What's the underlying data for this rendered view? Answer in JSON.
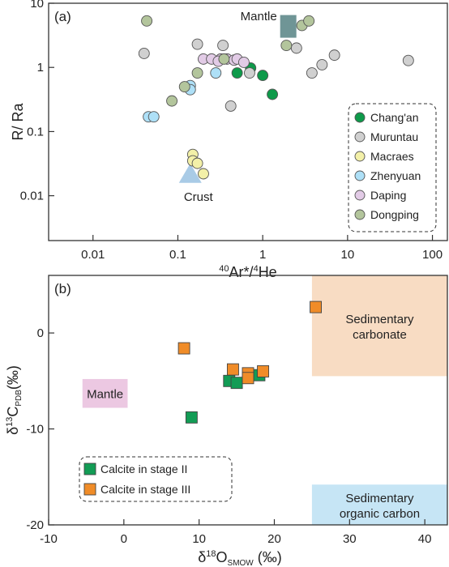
{
  "chart_data": [
    {
      "panel_label": "(a)",
      "type": "scatter",
      "x_scale": "log",
      "y_scale": "log",
      "xlim": [
        0.003,
        150
      ],
      "ylim": [
        0.002,
        10
      ],
      "x_ticks": [
        {
          "value": 0.01,
          "label": "0.01"
        },
        {
          "value": 0.1,
          "label": "0.1"
        },
        {
          "value": 1,
          "label": "1"
        },
        {
          "value": 10,
          "label": "10"
        },
        {
          "value": 100,
          "label": "100"
        }
      ],
      "y_ticks": [
        {
          "value": 0.01,
          "label": "0.01"
        },
        {
          "value": 0.1,
          "label": "0.1"
        },
        {
          "value": 1,
          "label": "1"
        },
        {
          "value": 10,
          "label": "10"
        }
      ],
      "xlabel_sup1": "40",
      "xlabel_main1": "Ar*/",
      "xlabel_sup2": "4",
      "xlabel_main2": "He",
      "ylabel": "R/ Ra",
      "reference_labels": {
        "mantle": "Mantle",
        "crust": "Crust"
      },
      "reference_points": [
        {
          "name": "Mantle",
          "x": 2.0,
          "y": 6.0,
          "shape": "square",
          "color": "#6f9596"
        },
        {
          "name": "Crust",
          "x": 0.14,
          "y": 0.02,
          "shape": "triangle",
          "color": "#a9cbe6"
        }
      ],
      "legend_position": "bottom-right",
      "series": [
        {
          "name": "Chang'an",
          "color": "#0e9a4a",
          "points": [
            [
              0.5,
              0.82
            ],
            [
              0.72,
              0.98
            ],
            [
              1.0,
              0.75
            ],
            [
              1.3,
              0.38
            ]
          ]
        },
        {
          "name": "Muruntau",
          "color": "#d0d0d0",
          "points": [
            [
              0.04,
              1.65
            ],
            [
              0.17,
              2.3
            ],
            [
              0.34,
              2.2
            ],
            [
              0.42,
              0.25
            ],
            [
              0.7,
              0.82
            ],
            [
              2.5,
              2.0
            ],
            [
              3.8,
              0.82
            ],
            [
              5.0,
              1.1
            ],
            [
              7.0,
              1.55
            ],
            [
              52,
              1.28
            ]
          ]
        },
        {
          "name": "Macraes",
          "color": "#f3f0a8",
          "points": [
            [
              0.15,
              0.044
            ],
            [
              0.15,
              0.035
            ],
            [
              0.17,
              0.032
            ],
            [
              0.2,
              0.022
            ]
          ]
        },
        {
          "name": "Zhenyuan",
          "color": "#aee0f7",
          "points": [
            [
              0.045,
              0.17
            ],
            [
              0.052,
              0.17
            ],
            [
              0.14,
              0.52
            ],
            [
              0.14,
              0.45
            ],
            [
              0.28,
              0.82
            ]
          ]
        },
        {
          "name": "Daping",
          "color": "#e2cbe6",
          "points": [
            [
              0.2,
              1.35
            ],
            [
              0.25,
              1.35
            ],
            [
              0.32,
              1.35
            ],
            [
              0.38,
              1.35
            ],
            [
              0.46,
              1.3
            ],
            [
              0.5,
              1.35
            ],
            [
              0.6,
              1.2
            ],
            [
              0.3,
              1.25
            ]
          ]
        },
        {
          "name": "Dongping",
          "color": "#b3c59c",
          "points": [
            [
              0.043,
              5.3
            ],
            [
              0.085,
              0.3
            ],
            [
              0.12,
              0.5
            ],
            [
              0.17,
              0.82
            ],
            [
              0.35,
              1.35
            ],
            [
              1.9,
              2.2
            ],
            [
              2.9,
              4.5
            ],
            [
              3.5,
              5.3
            ]
          ]
        }
      ]
    },
    {
      "panel_label": "(b)",
      "type": "scatter",
      "xlim": [
        -10,
        43
      ],
      "ylim": [
        -20,
        6
      ],
      "x_ticks": [
        -10,
        0,
        10,
        20,
        30,
        40
      ],
      "y_ticks": [
        0,
        -10,
        -20
      ],
      "xlabel_pre": "δ",
      "xlabel_sup": "18",
      "xlabel_main": "O",
      "xlabel_sub": "SMOW",
      "xlabel_post": " (‰)",
      "ylabel_pre": "δ",
      "ylabel_sup": "13",
      "ylabel_main": "C",
      "ylabel_sub": "PDB",
      "ylabel_post": "(‰)",
      "legend_position": "bottom-left",
      "regions": [
        {
          "key": "mantle",
          "x": [
            -5.5,
            0.5
          ],
          "y": [
            -7.8,
            -4.8
          ],
          "color": "#ecc8e2"
        },
        {
          "key": "carbonate",
          "x": [
            25,
            43
          ],
          "y": [
            -4.5,
            6
          ],
          "color": "#f8dcc3"
        },
        {
          "key": "organic",
          "x": [
            25,
            43
          ],
          "y": [
            -20,
            -15.8
          ],
          "color": "#c6e5f5"
        }
      ],
      "region_labels": {
        "mantle": [
          "Mantle"
        ],
        "carbonate": [
          "Sedimentary",
          "carbonate"
        ],
        "organic": [
          "Sedimentary",
          "organic carbon"
        ]
      },
      "series": [
        {
          "name": "Calcite in stage II",
          "color": "#129c55",
          "points": [
            [
              9,
              -8.8
            ],
            [
              14,
              -5
            ],
            [
              15,
              -5.2
            ],
            [
              18,
              -4.4
            ]
          ]
        },
        {
          "name": "Calcite in stage III",
          "color": "#f08c28",
          "points": [
            [
              8,
              -1.6
            ],
            [
              14.5,
              -3.8
            ],
            [
              16.5,
              -4.2
            ],
            [
              16.5,
              -4.7
            ],
            [
              18.5,
              -4
            ],
            [
              25.5,
              2.7
            ]
          ]
        }
      ]
    }
  ]
}
